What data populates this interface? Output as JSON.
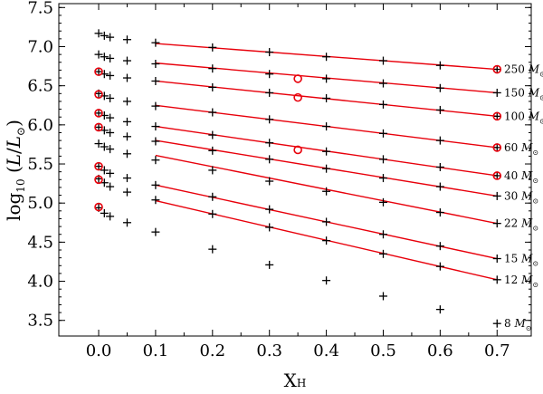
{
  "chart_data": {
    "type": "scatter",
    "xlabel": "X",
    "xlabel_sub": "H",
    "ylabel_prefix": "log",
    "ylabel_sub": "10",
    "ylabel_open": " (",
    "ylabel_L": "L",
    "ylabel_slash": "/",
    "ylabel_Lsun": "L",
    "ylabel_sun": "⊙",
    "ylabel_close": ")",
    "xlim": [
      -0.07,
      0.76
    ],
    "ylim": [
      3.3,
      7.55
    ],
    "xticks": [
      "0.0",
      "0.1",
      "0.2",
      "0.3",
      "0.4",
      "0.5",
      "0.6",
      "0.7"
    ],
    "yticks": [
      "3.5",
      "4.0",
      "4.5",
      "5.0",
      "5.5",
      "6.0",
      "6.5",
      "7.0",
      "7.5"
    ],
    "grid": false,
    "series": [
      {
        "mass_label": "250",
        "x": [
          0.0,
          0.01,
          0.02,
          0.05,
          0.1,
          0.2,
          0.3,
          0.4,
          0.5,
          0.6,
          0.7
        ],
        "y": [
          7.17,
          7.14,
          7.12,
          7.09,
          7.05,
          6.99,
          6.93,
          6.87,
          6.82,
          6.76,
          6.71
        ],
        "line": [
          [
            0.1,
            7.04
          ],
          [
            0.7,
            6.71
          ]
        ],
        "circles": [
          [
            0.7,
            6.71
          ],
          [
            0.35,
            6.59
          ]
        ]
      },
      {
        "mass_label": "150",
        "x": [
          0.0,
          0.01,
          0.02,
          0.05,
          0.1,
          0.2,
          0.3,
          0.4,
          0.5,
          0.6,
          0.7
        ],
        "y": [
          6.9,
          6.87,
          6.85,
          6.82,
          6.78,
          6.72,
          6.65,
          6.59,
          6.53,
          6.47,
          6.41
        ],
        "line": [
          [
            0.1,
            6.79
          ],
          [
            0.7,
            6.41
          ]
        ],
        "circles": [
          [
            0.0,
            6.68
          ],
          [
            0.35,
            6.35
          ]
        ]
      },
      {
        "mass_label": "100",
        "x": [
          0.0,
          0.01,
          0.02,
          0.05,
          0.1,
          0.2,
          0.3,
          0.4,
          0.5,
          0.6,
          0.7
        ],
        "y": [
          6.68,
          6.65,
          6.63,
          6.6,
          6.56,
          6.48,
          6.41,
          6.34,
          6.26,
          6.19,
          6.11
        ],
        "line": [
          [
            0.1,
            6.56
          ],
          [
            0.7,
            6.11
          ]
        ],
        "circles": [
          [
            0.0,
            6.39
          ],
          [
            0.7,
            6.11
          ]
        ]
      },
      {
        "mass_label": "60",
        "x": [
          0.0,
          0.01,
          0.02,
          0.05,
          0.1,
          0.2,
          0.3,
          0.4,
          0.5,
          0.6,
          0.7
        ],
        "y": [
          6.4,
          6.37,
          6.34,
          6.3,
          6.24,
          6.16,
          6.07,
          5.98,
          5.89,
          5.8,
          5.71
        ],
        "line": [
          [
            0.1,
            6.25
          ],
          [
            0.7,
            5.71
          ]
        ],
        "circles": [
          [
            0.0,
            6.15
          ],
          [
            0.7,
            5.71
          ],
          [
            0.35,
            5.68
          ]
        ]
      },
      {
        "mass_label": "40",
        "x": [
          0.0,
          0.01,
          0.02,
          0.05,
          0.1,
          0.2,
          0.3,
          0.4,
          0.5,
          0.6,
          0.7
        ],
        "y": [
          6.15,
          6.12,
          6.09,
          6.04,
          5.98,
          5.87,
          5.77,
          5.66,
          5.56,
          5.46,
          5.35
        ],
        "line": [
          [
            0.1,
            5.98
          ],
          [
            0.7,
            5.35
          ]
        ],
        "circles": [
          [
            0.0,
            5.97
          ],
          [
            0.7,
            5.35
          ]
        ]
      },
      {
        "mass_label": "30",
        "x": [
          0.0,
          0.01,
          0.02,
          0.05,
          0.1,
          0.2,
          0.3,
          0.4,
          0.5,
          0.6,
          0.7
        ],
        "y": [
          5.97,
          5.93,
          5.9,
          5.85,
          5.79,
          5.67,
          5.56,
          5.44,
          5.32,
          5.21,
          5.09
        ],
        "line": [
          [
            0.1,
            5.8
          ],
          [
            0.7,
            5.09
          ]
        ],
        "circles": [
          [
            0.0,
            5.47
          ]
        ]
      },
      {
        "mass_label": "22",
        "x": [
          0.0,
          0.01,
          0.02,
          0.05,
          0.1,
          0.2,
          0.3,
          0.4,
          0.5,
          0.6,
          0.7
        ],
        "y": [
          5.76,
          5.72,
          5.69,
          5.63,
          5.55,
          5.42,
          5.28,
          5.15,
          5.01,
          4.88,
          4.74
        ],
        "line": [
          [
            0.1,
            5.61
          ],
          [
            0.7,
            4.74
          ]
        ],
        "circles": [
          [
            0.0,
            5.3
          ]
        ]
      },
      {
        "mass_label": "15",
        "x": [
          0.0,
          0.01,
          0.02,
          0.05,
          0.1,
          0.2,
          0.3,
          0.4,
          0.5,
          0.6,
          0.7
        ],
        "y": [
          5.47,
          5.42,
          5.38,
          5.32,
          5.23,
          5.08,
          4.92,
          4.76,
          4.6,
          4.45,
          4.29
        ],
        "line": [
          [
            0.1,
            5.23
          ],
          [
            0.7,
            4.29
          ]
        ],
        "circles": []
      },
      {
        "mass_label": "12",
        "x": [
          0.0,
          0.01,
          0.02,
          0.05,
          0.1,
          0.2,
          0.3,
          0.4,
          0.5,
          0.6,
          0.7
        ],
        "y": [
          5.31,
          5.26,
          5.21,
          5.14,
          5.04,
          4.86,
          4.69,
          4.52,
          4.35,
          4.19,
          4.02
        ],
        "line": [
          [
            0.1,
            5.03
          ],
          [
            0.7,
            4.02
          ]
        ],
        "circles": [
          [
            0.0,
            4.95
          ]
        ]
      },
      {
        "mass_label": "8",
        "x": [
          0.0,
          0.01,
          0.02,
          0.05,
          0.1,
          0.2,
          0.3,
          0.4,
          0.5,
          0.6,
          0.7
        ],
        "y": [
          4.94,
          4.87,
          4.83,
          4.75,
          4.63,
          4.41,
          4.21,
          4.01,
          3.81,
          3.64,
          3.46
        ],
        "line": null,
        "circles": []
      }
    ],
    "mass_unit_M": "M",
    "mass_unit_sun": "⊙"
  }
}
